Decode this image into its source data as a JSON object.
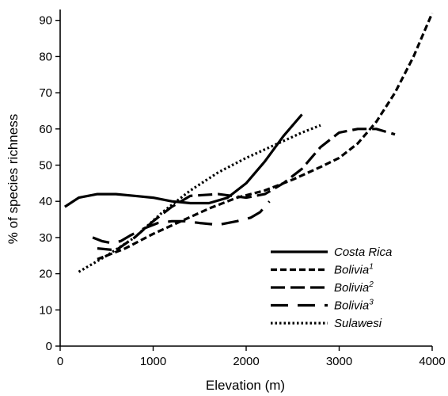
{
  "chart_data": {
    "type": "line",
    "xlabel": "Elevation (m)",
    "ylabel": "% of species richness",
    "xlim": [
      0,
      4000
    ],
    "ylim": [
      0,
      93
    ],
    "x_ticks": [
      0,
      1000,
      2000,
      3000,
      4000
    ],
    "y_ticks": [
      0,
      10,
      20,
      30,
      40,
      50,
      60,
      70,
      80,
      90
    ],
    "grid": false,
    "legend_position": "bottom-right",
    "series": [
      {
        "name": "Costa Rica",
        "sup": "",
        "dash": "solid",
        "x": [
          50,
          200,
          400,
          600,
          800,
          1000,
          1200,
          1400,
          1600,
          1800,
          2000,
          2200,
          2400,
          2600
        ],
        "y": [
          38.5,
          41,
          42,
          42,
          41.5,
          41,
          40,
          39.5,
          39.5,
          41,
          45,
          51,
          58,
          64
        ]
      },
      {
        "name": "Bolivia",
        "sup": "1",
        "dash": "dash",
        "x": [
          400,
          700,
          1000,
          1300,
          1600,
          1900,
          2200,
          2500,
          2800,
          3000,
          3200,
          3400,
          3600,
          3800,
          4000
        ],
        "y": [
          24,
          27,
          31,
          34.5,
          38,
          41,
          43,
          46,
          49.5,
          52,
          56,
          62,
          70,
          80,
          92
        ]
      },
      {
        "name": "Bolivia",
        "sup": "2",
        "dash": "longdash",
        "x": [
          400,
          600,
          800,
          1000,
          1200,
          1400,
          1700,
          2000,
          2200,
          2400,
          2600,
          2800,
          3000,
          3200,
          3400,
          3600
        ],
        "y": [
          27,
          26.5,
          30,
          34.5,
          38.5,
          41.5,
          42,
          41,
          42,
          45,
          49,
          55,
          59,
          60,
          60,
          58.5
        ]
      },
      {
        "name": "Bolivia",
        "sup": "3",
        "dash": "longdash-wide",
        "x": [
          350,
          450,
          550,
          650,
          750,
          900,
          1050,
          1200,
          1350,
          1500,
          1700,
          1900,
          2050,
          2150,
          2250
        ],
        "y": [
          30,
          29,
          28.5,
          29,
          30.5,
          32.5,
          34,
          34.5,
          34.5,
          34,
          33.5,
          34.5,
          35.5,
          37,
          40
        ]
      },
      {
        "name": "Sulawesi",
        "sup": "",
        "dash": "dot",
        "x": [
          200,
          500,
          800,
          1100,
          1400,
          1700,
          2000,
          2300,
          2600,
          2800
        ],
        "y": [
          20.5,
          25,
          30,
          37,
          43,
          48,
          52,
          55.5,
          59,
          61
        ]
      }
    ]
  }
}
